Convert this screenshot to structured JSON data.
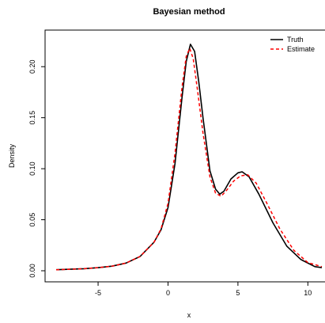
{
  "chart_data": {
    "type": "line",
    "title": "Bayesian method",
    "xlabel": "x",
    "ylabel": "Density",
    "xlim": [
      -8,
      11
    ],
    "ylim": [
      0,
      0.225
    ],
    "xticks": [
      -5,
      0,
      5,
      10
    ],
    "yticks": [
      0.0,
      0.05,
      0.1,
      0.15,
      0.2
    ],
    "ytick_labels": [
      "0.00",
      "0.05",
      "0.10",
      "0.15",
      "0.20"
    ],
    "grid": false,
    "legend": {
      "position": "top-right"
    },
    "series": [
      {
        "name": "Truth",
        "color": "#000000",
        "dash": "solid",
        "points": [
          [
            -8,
            0.001
          ],
          [
            -7,
            0.0015
          ],
          [
            -6,
            0.002
          ],
          [
            -5,
            0.003
          ],
          [
            -4,
            0.0045
          ],
          [
            -3,
            0.0075
          ],
          [
            -2,
            0.014
          ],
          [
            -1,
            0.028
          ],
          [
            -0.5,
            0.04
          ],
          [
            0,
            0.062
          ],
          [
            0.5,
            0.105
          ],
          [
            1.0,
            0.17
          ],
          [
            1.3,
            0.205
          ],
          [
            1.6,
            0.222
          ],
          [
            1.9,
            0.215
          ],
          [
            2.2,
            0.185
          ],
          [
            2.5,
            0.15
          ],
          [
            3.0,
            0.098
          ],
          [
            3.4,
            0.08
          ],
          [
            3.7,
            0.075
          ],
          [
            4.0,
            0.078
          ],
          [
            4.5,
            0.09
          ],
          [
            5.0,
            0.096
          ],
          [
            5.3,
            0.097
          ],
          [
            5.8,
            0.092
          ],
          [
            6.5,
            0.075
          ],
          [
            7.5,
            0.047
          ],
          [
            8.5,
            0.024
          ],
          [
            9.5,
            0.011
          ],
          [
            10.5,
            0.004
          ],
          [
            11,
            0.003
          ]
        ]
      },
      {
        "name": "Estimate",
        "color": "#ff0000",
        "dash": "dashed",
        "points": [
          [
            -8,
            0.001
          ],
          [
            -7,
            0.0015
          ],
          [
            -6,
            0.002
          ],
          [
            -5,
            0.003
          ],
          [
            -4,
            0.0045
          ],
          [
            -3,
            0.0075
          ],
          [
            -2,
            0.014
          ],
          [
            -1,
            0.028
          ],
          [
            -0.5,
            0.041
          ],
          [
            0,
            0.066
          ],
          [
            0.5,
            0.115
          ],
          [
            1.0,
            0.18
          ],
          [
            1.3,
            0.21
          ],
          [
            1.55,
            0.218
          ],
          [
            1.8,
            0.208
          ],
          [
            2.1,
            0.178
          ],
          [
            2.5,
            0.135
          ],
          [
            3.0,
            0.092
          ],
          [
            3.4,
            0.076
          ],
          [
            3.8,
            0.073
          ],
          [
            4.2,
            0.079
          ],
          [
            4.7,
            0.088
          ],
          [
            5.2,
            0.093
          ],
          [
            5.7,
            0.094
          ],
          [
            6.3,
            0.086
          ],
          [
            7.0,
            0.068
          ],
          [
            8.0,
            0.041
          ],
          [
            9.0,
            0.02
          ],
          [
            10.0,
            0.008
          ],
          [
            11,
            0.004
          ]
        ]
      }
    ]
  }
}
